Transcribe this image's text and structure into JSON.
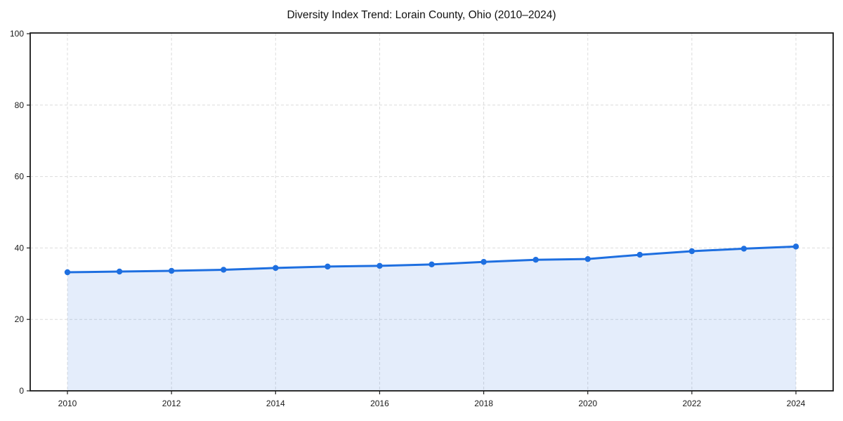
{
  "chart_data": {
    "type": "line",
    "title": "Diversity Index Trend: Lorain County, Ohio (2010–2024)",
    "x": [
      2010,
      2011,
      2012,
      2013,
      2014,
      2015,
      2016,
      2017,
      2018,
      2019,
      2020,
      2021,
      2022,
      2023,
      2024
    ],
    "values": [
      33.2,
      33.4,
      33.6,
      33.9,
      34.4,
      34.8,
      35.0,
      35.4,
      36.1,
      36.7,
      36.9,
      38.1,
      39.1,
      39.8,
      40.4
    ],
    "x_ticks": [
      2010,
      2012,
      2014,
      2016,
      2018,
      2020,
      2022,
      2024
    ],
    "y_ticks": [
      0,
      20,
      40,
      60,
      80,
      100
    ],
    "ylim": [
      0,
      100
    ],
    "grid": "dashed-both-axes",
    "legend": "none",
    "line_color": "#1e6fe0",
    "marker_color": "#1e6fe0",
    "fill_color": "#1e6fe0",
    "fill_opacity": 0.12,
    "grid_color": "#dcdcdc",
    "axis_color": "#1a1a1a",
    "background_color": "#ffffff"
  }
}
